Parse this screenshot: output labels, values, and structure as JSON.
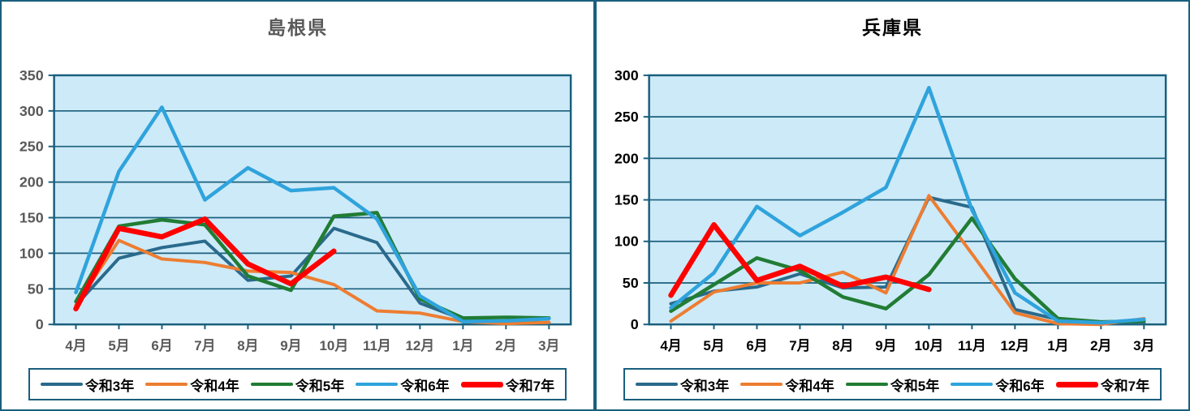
{
  "chart_data": [
    {
      "type": "line",
      "title": "島根県",
      "title_color": "#595959",
      "axis_color": "#595959",
      "plot_bg": "#cdeaf8",
      "grid_color": "#1a5f7d",
      "xlabel": "",
      "ylabel": "",
      "ylim": [
        0,
        350
      ],
      "yticks": [
        0,
        50,
        100,
        150,
        200,
        250,
        300,
        350
      ],
      "grid": true,
      "legend_position": "bottom",
      "categories": [
        "4月",
        "5月",
        "6月",
        "7月",
        "8月",
        "9月",
        "10月",
        "11月",
        "12月",
        "1月",
        "2月",
        "3月"
      ],
      "series": [
        {
          "name": "令和3年",
          "color": "#2a6a8c",
          "width": 4,
          "values": [
            27,
            93,
            108,
            117,
            62,
            68,
            135,
            115,
            30,
            7,
            4,
            2
          ]
        },
        {
          "name": "令和4年",
          "color": "#ed7d31",
          "width": 4,
          "values": [
            27,
            118,
            92,
            87,
            75,
            73,
            56,
            19,
            16,
            4,
            1,
            3
          ]
        },
        {
          "name": "令和5年",
          "color": "#217c34",
          "width": 4.5,
          "values": [
            32,
            138,
            147,
            140,
            68,
            48,
            152,
            157,
            36,
            9,
            10,
            9
          ]
        },
        {
          "name": "令和6年",
          "color": "#2fa3dc",
          "width": 4.5,
          "values": [
            45,
            215,
            305,
            175,
            220,
            188,
            192,
            148,
            40,
            4,
            5,
            8
          ]
        },
        {
          "name": "令和7年",
          "color": "#ff0000",
          "width": 6.5,
          "values": [
            22,
            135,
            123,
            148,
            85,
            57,
            103,
            null,
            null,
            null,
            null,
            null
          ]
        }
      ]
    },
    {
      "type": "line",
      "title": "兵庫県",
      "title_color": "#000000",
      "axis_color": "#000000",
      "plot_bg": "#cdeaf8",
      "grid_color": "#1a5f7d",
      "xlabel": "",
      "ylabel": "",
      "ylim": [
        0,
        300
      ],
      "yticks": [
        0,
        50,
        100,
        150,
        200,
        250,
        300
      ],
      "grid": true,
      "legend_position": "bottom",
      "categories": [
        "4月",
        "5月",
        "6月",
        "7月",
        "8月",
        "9月",
        "10月",
        "11月",
        "12月",
        "1月",
        "2月",
        "3月"
      ],
      "series": [
        {
          "name": "令和3年",
          "color": "#2a6a8c",
          "width": 4,
          "values": [
            25,
            40,
            45,
            61,
            44,
            45,
            153,
            141,
            18,
            6,
            3,
            2
          ]
        },
        {
          "name": "令和4年",
          "color": "#ed7d31",
          "width": 4,
          "values": [
            4,
            39,
            50,
            50,
            63,
            38,
            155,
            85,
            14,
            1,
            0,
            7
          ]
        },
        {
          "name": "令和5年",
          "color": "#217c34",
          "width": 4.5,
          "values": [
            16,
            48,
            80,
            65,
            33,
            19,
            60,
            128,
            55,
            7,
            3,
            4
          ]
        },
        {
          "name": "令和6年",
          "color": "#2fa3dc",
          "width": 4.5,
          "values": [
            20,
            62,
            142,
            107,
            135,
            165,
            285,
            138,
            38,
            4,
            2,
            6
          ]
        },
        {
          "name": "令和7年",
          "color": "#ff0000",
          "width": 6.5,
          "values": [
            35,
            120,
            53,
            70,
            46,
            57,
            42,
            null,
            null,
            null,
            null,
            null
          ]
        }
      ]
    }
  ]
}
